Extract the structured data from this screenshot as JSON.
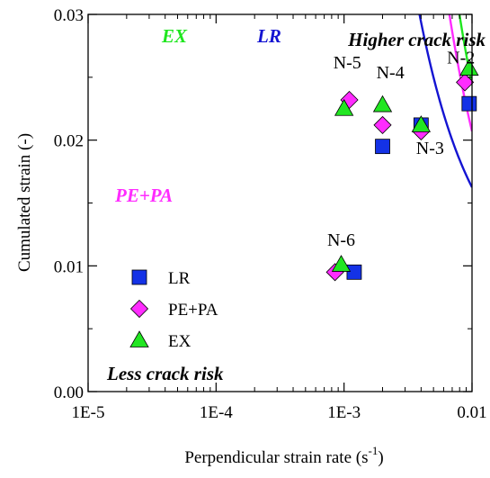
{
  "chart_data": {
    "type": "scatter",
    "title": "",
    "xlabel": "Perpendicular strain rate (s",
    "xlabel_sup": "-1",
    "xlabel_end": ")",
    "ylabel": "Cumulated strain (-)",
    "xscale": "log",
    "xlim": [
      1e-05,
      0.01
    ],
    "ylim": [
      0,
      0.03
    ],
    "x_ticks": [
      1e-05,
      0.0001,
      0.001,
      0.01
    ],
    "x_tick_labels": [
      "1E-5",
      "1E-4",
      "1E-3",
      "0.01"
    ],
    "y_ticks": [
      0,
      0.01,
      0.02,
      0.03
    ],
    "y_tick_labels": [
      "0.00",
      "0.01",
      "0.02",
      "0.03"
    ],
    "grid": false,
    "legend_position": "bottom-left",
    "series": [
      {
        "name": "LR",
        "marker": "square",
        "color": "#1432e6",
        "points": [
          [
            0.0012,
            0.0095
          ],
          [
            0.002,
            0.0195
          ],
          [
            0.004,
            0.0212
          ],
          [
            0.0095,
            0.0229
          ]
        ]
      },
      {
        "name": "PE+PA",
        "marker": "diamond",
        "color": "#ff2cff",
        "points": [
          [
            0.00085,
            0.0095
          ],
          [
            0.0011,
            0.0232
          ],
          [
            0.002,
            0.0212
          ],
          [
            0.004,
            0.0207
          ],
          [
            0.0088,
            0.0246
          ]
        ]
      },
      {
        "name": "EX",
        "marker": "triangle",
        "color": "#22e622",
        "points": [
          [
            0.00095,
            0.0101
          ],
          [
            0.001,
            0.0225
          ],
          [
            0.002,
            0.0228
          ],
          [
            0.004,
            0.0212
          ],
          [
            0.0095,
            0.0257
          ]
        ]
      }
    ],
    "curves": [
      {
        "label": "LR",
        "color": "#1414d2",
        "k": 8.75e-05,
        "c": 0.0075,
        "x_start": 0.00031
      },
      {
        "label": "EX",
        "color": "#1ee61e",
        "k": 0.00022,
        "c": 0.0024,
        "x_start": 2.35e-05
      },
      {
        "label": "PE+PA",
        "color": "#ff2cff",
        "k": 0.000185,
        "c": 0.0022,
        "x_start": 1.25e-05
      }
    ],
    "annotations": [
      {
        "text": "N-2",
        "x": 0.0082,
        "y": 0.0261
      },
      {
        "text": "N-3",
        "x": 0.0047,
        "y": 0.0189
      },
      {
        "text": "N-4",
        "x": 0.0023,
        "y": 0.0249
      },
      {
        "text": "N-5",
        "x": 0.00106,
        "y": 0.0257
      },
      {
        "text": "N-6",
        "x": 0.00095,
        "y": 0.0116
      }
    ],
    "region_labels": {
      "higher": "Higher crack risk",
      "less": "Less crack risk"
    }
  }
}
